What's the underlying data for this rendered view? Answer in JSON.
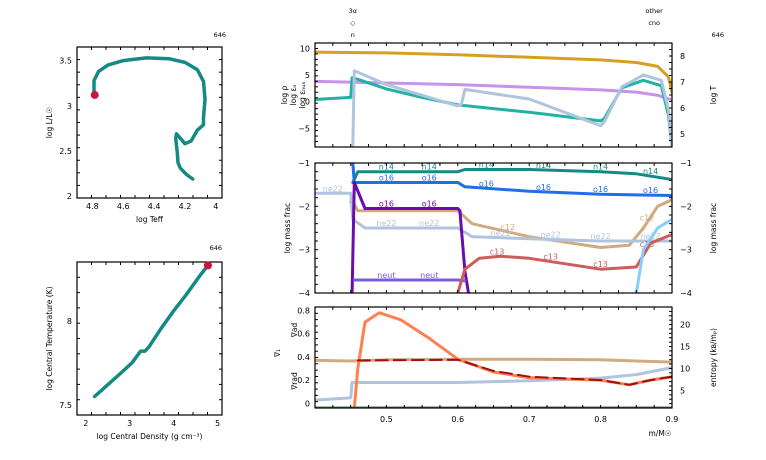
{
  "model_number": "646",
  "chart_data": [
    {
      "id": "hr",
      "type": "line",
      "title": "",
      "corner_label": "646",
      "xlabel": "log Teff",
      "ylabel": "log L/L☉",
      "xlim": [
        4.9,
        3.96
      ],
      "ylim": [
        1.98,
        3.65
      ],
      "xticks": [
        4.8,
        4.6,
        4.4,
        4.2,
        4.0
      ],
      "xtick_labels": [
        "4.8",
        "4.6",
        "4.4",
        "4.2",
        "4"
      ],
      "yticks": [
        2,
        2.5,
        3,
        3.5
      ],
      "ytick_labels": [
        "2",
        "2.5",
        "3",
        "3.5"
      ],
      "color": "#138a84",
      "marker_color": "#c8163c",
      "series": [
        {
          "name": "track",
          "x": [
            4.15,
            4.19,
            4.23,
            4.245,
            4.25,
            4.26,
            4.255,
            4.24,
            4.2,
            4.16,
            4.12,
            4.08,
            4.08,
            4.07,
            4.08,
            4.12,
            4.2,
            4.3,
            4.45,
            4.6,
            4.7,
            4.76,
            4.79,
            4.79
          ],
          "y": [
            2.19,
            2.24,
            2.31,
            2.37,
            2.48,
            2.64,
            2.69,
            2.66,
            2.58,
            2.61,
            2.73,
            2.79,
            2.87,
            3.07,
            3.27,
            3.4,
            3.48,
            3.52,
            3.53,
            3.5,
            3.45,
            3.38,
            3.28,
            3.16
          ]
        }
      ],
      "marker": {
        "x": 4.785,
        "y": 3.12
      }
    },
    {
      "id": "center",
      "type": "line",
      "corner_label": "646",
      "xlabel": "log Central Density (g cm⁻³)",
      "ylabel": "log Central Temperature (K)",
      "xlim": [
        1.8,
        5.1
      ],
      "ylim": [
        7.44,
        8.35
      ],
      "xticks": [
        2,
        3,
        4,
        5
      ],
      "xtick_labels": [
        "2",
        "3",
        "4",
        "5"
      ],
      "yticks": [
        7.5,
        8
      ],
      "ytick_labels": [
        "7.5",
        "8"
      ],
      "color": "#138a84",
      "marker_color": "#c8163c",
      "series": [
        {
          "name": "track",
          "x": [
            2.2,
            2.5,
            2.8,
            3.05,
            3.25,
            3.35,
            3.45,
            3.7,
            4.0,
            4.3,
            4.6,
            4.78
          ],
          "y": [
            7.55,
            7.62,
            7.69,
            7.75,
            7.82,
            7.82,
            7.85,
            7.95,
            8.06,
            8.16,
            8.27,
            8.33
          ]
        }
      ],
      "marker": {
        "x": 4.78,
        "y": 8.33
      }
    },
    {
      "id": "profile-top",
      "type": "line",
      "corner_label": "646",
      "xlim": [
        0.4,
        0.9
      ],
      "ylim": [
        -8.5,
        11
      ],
      "yticks": [
        -5,
        0,
        5,
        10
      ],
      "ytick_labels": [
        "−5",
        "0",
        "5",
        "10"
      ],
      "y2lim": [
        4.5,
        8.5
      ],
      "y2ticks": [
        5,
        6,
        7,
        8
      ],
      "y2tick_labels": [
        "5",
        "6",
        "7",
        "8"
      ],
      "y2label": "log T",
      "ylabels": [
        {
          "text": "log ρ",
          "color": "#c792ea"
        },
        {
          "text": "log εₙ",
          "color": "#20b2a4"
        },
        {
          "text": "log εₙᵤₓ",
          "color": "#b0c4de"
        }
      ],
      "top_annotations": [
        {
          "x": 0.453,
          "lines": [
            "3α",
            "◇",
            "n"
          ]
        },
        {
          "x": 0.875,
          "lines": [
            "other",
            "cno"
          ]
        }
      ],
      "series": [
        {
          "name": "log T",
          "axis": "y2",
          "color": "#d4a020",
          "x": [
            0.4,
            0.5,
            0.6,
            0.7,
            0.8,
            0.85,
            0.88,
            0.895,
            0.9
          ],
          "y": [
            8.15,
            8.12,
            8.05,
            7.95,
            7.85,
            7.75,
            7.6,
            7.2,
            6.6
          ]
        },
        {
          "name": "log rho",
          "axis": "y",
          "color": "#c792ea",
          "x": [
            0.4,
            0.5,
            0.6,
            0.7,
            0.8,
            0.85,
            0.88,
            0.9
          ],
          "y": [
            3.8,
            3.5,
            3.2,
            2.7,
            2.2,
            1.8,
            1.2,
            0.3
          ]
        },
        {
          "name": "log eps_nuc",
          "axis": "y",
          "color": "#20b2a4",
          "x": [
            0.4,
            0.45,
            0.452,
            0.46,
            0.5,
            0.55,
            0.6,
            0.7,
            0.8,
            0.805,
            0.83,
            0.86,
            0.885,
            0.895,
            0.9
          ],
          "y": [
            0.4,
            0.8,
            4.5,
            4.2,
            2.4,
            0.8,
            -0.6,
            -2.0,
            -3.6,
            -3.2,
            2.6,
            4.0,
            3.0,
            -2.5,
            -8.5
          ]
        },
        {
          "name": "log eps_nu",
          "axis": "y",
          "color": "#b0c4de",
          "x": [
            0.453,
            0.455,
            0.5,
            0.55,
            0.6,
            0.605,
            0.61,
            0.7,
            0.8,
            0.805,
            0.83,
            0.86,
            0.885,
            0.895,
            0.9
          ],
          "y": [
            -8.5,
            5.8,
            3.2,
            1.2,
            -0.8,
            -0.5,
            2.3,
            0.5,
            -4.5,
            -3.8,
            2.8,
            5.0,
            4.0,
            -1.5,
            -8.5
          ]
        }
      ]
    },
    {
      "id": "profile-mid",
      "type": "line",
      "xlim": [
        0.4,
        0.9
      ],
      "ylim": [
        -4,
        -1
      ],
      "yticks": [
        -4,
        -3,
        -2,
        -1
      ],
      "ytick_labels": [
        "−4",
        "−3",
        "−2",
        "−1"
      ],
      "ylabel": "log mass frac",
      "y2label": "log mass frac",
      "series": [
        {
          "name": "n14",
          "color": "#138a84",
          "x": [
            0.453,
            0.46,
            0.6,
            0.61,
            0.7,
            0.8,
            0.85,
            0.9
          ],
          "y": [
            -1.45,
            -1.2,
            -1.2,
            -1.15,
            -1.15,
            -1.2,
            -1.25,
            -1.38
          ],
          "labels": [
            0.5,
            0.56,
            0.64,
            0.72,
            0.8,
            0.87
          ]
        },
        {
          "name": "o16",
          "color": "#1f6fe8",
          "x": [
            0.453,
            0.455,
            0.6,
            0.61,
            0.7,
            0.8,
            0.9
          ],
          "y": [
            -1.0,
            -1.45,
            -1.45,
            -1.55,
            -1.65,
            -1.72,
            -1.75
          ],
          "labels": [
            0.5,
            0.56,
            0.64,
            0.72,
            0.8,
            0.87
          ]
        },
        {
          "name": "c12",
          "color": "#d2aa7f",
          "x": [
            0.45,
            0.455,
            0.46,
            0.6,
            0.62,
            0.7,
            0.8,
            0.84,
            0.86,
            0.88,
            0.9
          ],
          "y": [
            -1.9,
            -1.95,
            -2.1,
            -2.1,
            -2.4,
            -2.7,
            -2.95,
            -2.9,
            -2.5,
            -2.0,
            -1.85
          ],
          "labels": [
            0.67,
            0.865
          ]
        },
        {
          "name": "ne22",
          "color": "#b0c4de",
          "x": [
            0.4,
            0.45,
            0.453,
            0.47,
            0.6,
            0.62,
            0.7,
            0.8,
            0.9
          ],
          "y": [
            -1.7,
            -1.7,
            -2.3,
            -2.5,
            -2.5,
            -2.7,
            -2.75,
            -2.8,
            -2.8
          ],
          "labels": [
            0.425,
            0.5,
            0.56,
            0.66,
            0.73,
            0.8,
            0.87
          ]
        },
        {
          "name": "c16",
          "color": "#6a0dad",
          "x": [
            0.452,
            0.455,
            0.47,
            0.6,
            0.603,
            0.61,
            0.615
          ],
          "y": [
            -4.0,
            -1.45,
            -2.05,
            -2.05,
            -2.1,
            -3.5,
            -4.0
          ],
          "labels": [
            0.5,
            0.56
          ]
        },
        {
          "name": "neut",
          "color": "#7a5cd6",
          "x": [
            0.455,
            0.46,
            0.6,
            0.61
          ],
          "y": [
            -3.7,
            -3.7,
            -3.7,
            -3.72
          ],
          "labels": [
            0.5,
            0.56
          ]
        },
        {
          "name": "c13",
          "color": "#cd5c5c",
          "x": [
            0.6,
            0.61,
            0.63,
            0.66,
            0.7,
            0.8,
            0.85,
            0.87,
            0.9
          ],
          "y": [
            -4.0,
            -3.45,
            -3.2,
            -3.15,
            -3.2,
            -3.45,
            -3.4,
            -2.85,
            -2.65
          ],
          "labels": [
            0.655,
            0.73,
            0.8,
            0.865
          ]
        },
        {
          "name": "o16b",
          "color": "#87cefa",
          "x": [
            0.85,
            0.86,
            0.88,
            0.9
          ],
          "y": [
            -4.0,
            -3.0,
            -2.5,
            -2.3
          ],
          "labels": []
        }
      ],
      "label_texts": {
        "n14": "n14",
        "o16": "o16",
        "c12": "c12",
        "ne22": "ne22",
        "c16": "o16",
        "neut": "neut",
        "c13": "c13"
      }
    },
    {
      "id": "profile-bottom",
      "type": "line",
      "xlim": [
        0.4,
        0.9
      ],
      "ylim": [
        -0.04,
        0.83
      ],
      "yticks": [
        0,
        0.2,
        0.4,
        0.6,
        0.8
      ],
      "ytick_labels": [
        "0",
        "0.2",
        "0.4",
        "0.6",
        "0.8"
      ],
      "xticks": [
        0.5,
        0.6,
        0.7,
        0.8,
        0.9
      ],
      "xtick_labels": [
        "0.5",
        "0.6",
        "0.7",
        "0.8",
        "0.9"
      ],
      "xlabel": "m/M☉",
      "y2lim": [
        1,
        24
      ],
      "y2ticks": [
        5,
        10,
        15,
        20
      ],
      "y2tick_labels": [
        "5",
        "10",
        "15",
        "20"
      ],
      "y2label": "entropy (kʙ/mₚ)",
      "ylabels": [
        {
          "text": "∇ad",
          "color": "#d2aa7f"
        },
        {
          "text": "∇₁",
          "color": "#a01010"
        },
        {
          "text": "∇rad",
          "color": "#ff7f50"
        }
      ],
      "series": [
        {
          "name": "grad_ad",
          "color": "#d2aa7f",
          "x": [
            0.4,
            0.45,
            0.5,
            0.6,
            0.7,
            0.8,
            0.85,
            0.9
          ],
          "y": [
            0.37,
            0.365,
            0.375,
            0.38,
            0.38,
            0.375,
            0.365,
            0.355
          ]
        },
        {
          "name": "entropy",
          "color": "#b0c4de",
          "axis": "y2",
          "x": [
            0.4,
            0.43,
            0.45,
            0.452,
            0.6,
            0.7,
            0.8,
            0.85,
            0.9
          ],
          "y": [
            2.8,
            3.1,
            3.3,
            6.8,
            6.8,
            7.2,
            7.8,
            8.6,
            10.2
          ]
        },
        {
          "name": "grad_rad",
          "color": "#ff7f50",
          "x": [
            0.455,
            0.46,
            0.47,
            0.49,
            0.52,
            0.56,
            0.6,
            0.65,
            0.7,
            0.8,
            0.84,
            0.87,
            0.9
          ],
          "y": [
            -0.04,
            0.3,
            0.7,
            0.78,
            0.72,
            0.56,
            0.38,
            0.27,
            0.22,
            0.2,
            0.16,
            0.2,
            0.23
          ]
        },
        {
          "name": "grad_T",
          "color": "#a01010",
          "dashed": true,
          "x": [
            0.46,
            0.6,
            0.65,
            0.7,
            0.8,
            0.84,
            0.87,
            0.9
          ],
          "y": [
            0.37,
            0.375,
            0.28,
            0.23,
            0.2,
            0.16,
            0.2,
            0.23
          ]
        },
        {
          "name": "baseline",
          "color": "#556b7a",
          "x": [
            0.4,
            0.9
          ],
          "y": [
            -0.04,
            -0.04
          ]
        },
        {
          "name": "baseline-green",
          "color": "#2e8b57",
          "x": [
            0.4,
            0.45
          ],
          "y": [
            -0.04,
            -0.04
          ]
        }
      ]
    }
  ]
}
